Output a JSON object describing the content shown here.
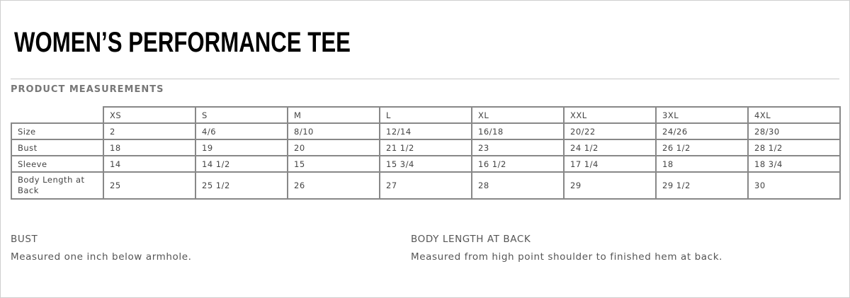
{
  "title": "WOMEN’S PERFORMANCE TEE",
  "section": "PRODUCT MEASUREMENTS",
  "table": {
    "columns": [
      "XS",
      "S",
      "M",
      "L",
      "XL",
      "XXL",
      "3XL",
      "4XL"
    ],
    "rows": [
      {
        "label": "Size",
        "values": [
          "2",
          "4/6",
          "8/10",
          "12/14",
          "16/18",
          "20/22",
          "24/26",
          "28/30"
        ]
      },
      {
        "label": "Bust",
        "values": [
          "18",
          "19",
          "20",
          "21 1/2",
          "23",
          "24 1/2",
          "26 1/2",
          "28 1/2"
        ]
      },
      {
        "label": "Sleeve",
        "values": [
          "14",
          "14 1/2",
          "15",
          "15 3/4",
          "16 1/2",
          "17 1/4",
          "18",
          "18 3/4"
        ]
      },
      {
        "label": "Body Length at Back",
        "values": [
          "25",
          "25 1/2",
          "26",
          "27",
          "28",
          "29",
          "29 1/2",
          "30"
        ]
      }
    ]
  },
  "notes": [
    {
      "heading": "BUST",
      "text": "Measured one inch below armhole."
    },
    {
      "heading": "BODY LENGTH AT BACK",
      "text": "Measured from high point shoulder to finished hem at back."
    }
  ]
}
